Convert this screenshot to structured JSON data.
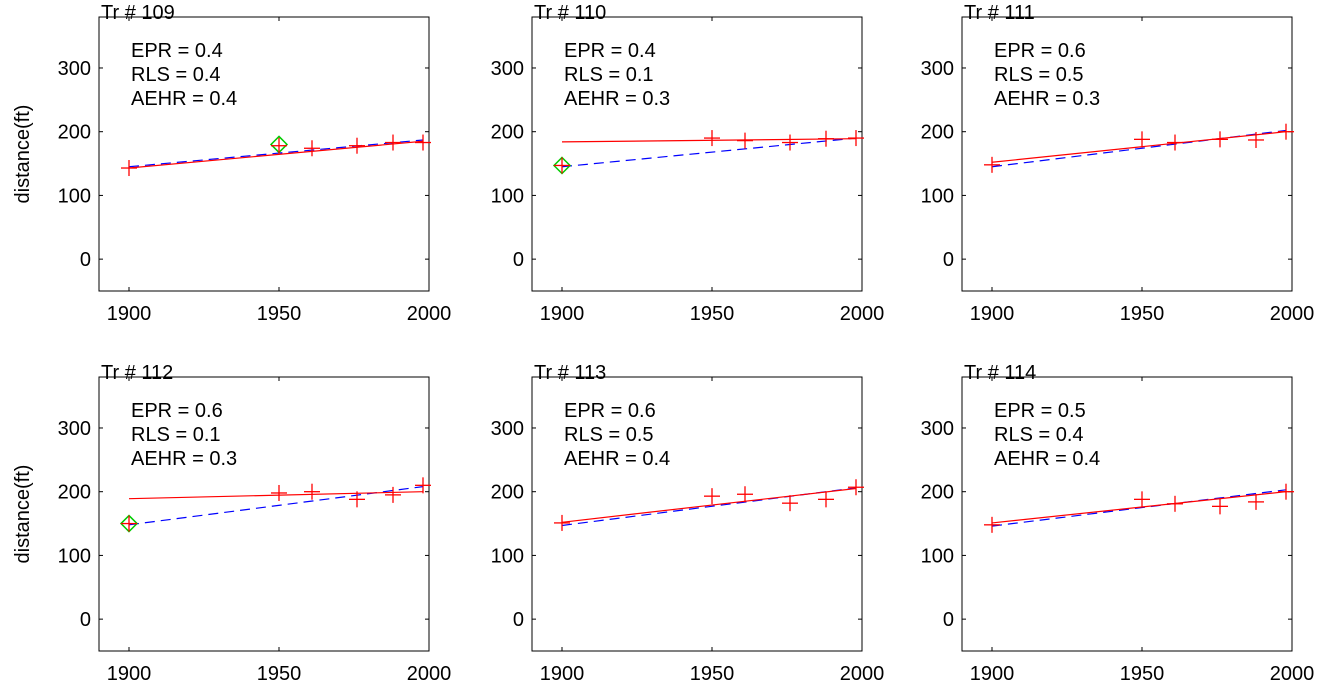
{
  "chart_data": [
    {
      "type": "scatter",
      "title": "Tr # 109",
      "annotations": [
        "EPR = 0.4",
        "RLS = 0.4",
        "AEHR = 0.4"
      ],
      "ylabel": "distance(ft)",
      "xlim": [
        1890,
        2000
      ],
      "ylim": [
        -50,
        380
      ],
      "xticks": [
        1900,
        1950,
        2000
      ],
      "yticks": [
        0,
        100,
        200,
        300
      ],
      "points": {
        "x": [
          1900,
          1950,
          1961,
          1976,
          1988,
          1998
        ],
        "y": [
          143,
          178,
          174,
          178,
          183,
          183
        ]
      },
      "highlight": {
        "x": 1950,
        "y": 180
      },
      "fit_red": {
        "x": [
          1900,
          1998
        ],
        "y": [
          143,
          185
        ]
      },
      "fit_blue": {
        "x": [
          1900,
          1998
        ],
        "y": [
          145,
          187
        ]
      }
    },
    {
      "type": "scatter",
      "title": "Tr # 110",
      "annotations": [
        "EPR = 0.4",
        "RLS = 0.1",
        "AEHR = 0.3"
      ],
      "ylabel": "",
      "xlim": [
        1890,
        2000
      ],
      "ylim": [
        -50,
        380
      ],
      "xticks": [
        1900,
        1950,
        2000
      ],
      "yticks": [
        0,
        100,
        200,
        300
      ],
      "points": {
        "x": [
          1900,
          1950,
          1961,
          1976,
          1988,
          1998
        ],
        "y": [
          147,
          190,
          186,
          183,
          189,
          190
        ]
      },
      "highlight": {
        "x": 1900,
        "y": 147
      },
      "fit_red": {
        "x": [
          1900,
          1998
        ],
        "y": [
          184,
          189
        ]
      },
      "fit_blue": {
        "x": [
          1900,
          1998
        ],
        "y": [
          145,
          190
        ]
      }
    },
    {
      "type": "scatter",
      "title": "Tr # 111",
      "annotations": [
        "EPR = 0.6",
        "RLS = 0.5",
        "AEHR = 0.3"
      ],
      "ylabel": "",
      "xlim": [
        1890,
        2000
      ],
      "ylim": [
        -50,
        380
      ],
      "xticks": [
        1900,
        1950,
        2000
      ],
      "yticks": [
        0,
        100,
        200,
        300
      ],
      "points": {
        "x": [
          1900,
          1950,
          1961,
          1976,
          1988,
          1998
        ],
        "y": [
          148,
          188,
          183,
          188,
          187,
          200
        ]
      },
      "highlight": null,
      "fit_red": {
        "x": [
          1900,
          1998
        ],
        "y": [
          152,
          200
        ]
      },
      "fit_blue": {
        "x": [
          1900,
          1998
        ],
        "y": [
          145,
          202
        ]
      }
    },
    {
      "type": "scatter",
      "title": "Tr # 112",
      "annotations": [
        "EPR = 0.6",
        "RLS = 0.1",
        "AEHR = 0.3"
      ],
      "ylabel": "distance(ft)",
      "xlim": [
        1890,
        2000
      ],
      "ylim": [
        -50,
        380
      ],
      "xticks": [
        1900,
        1950,
        2000
      ],
      "yticks": [
        0,
        100,
        200,
        300
      ],
      "points": {
        "x": [
          1900,
          1950,
          1961,
          1976,
          1988,
          1998
        ],
        "y": [
          150,
          198,
          200,
          188,
          195,
          210
        ]
      },
      "highlight": {
        "x": 1900,
        "y": 150
      },
      "fit_red": {
        "x": [
          1900,
          1998
        ],
        "y": [
          189,
          200
        ]
      },
      "fit_blue": {
        "x": [
          1900,
          1998
        ],
        "y": [
          148,
          208
        ]
      }
    },
    {
      "type": "scatter",
      "title": "Tr # 113",
      "annotations": [
        "EPR = 0.6",
        "RLS = 0.5",
        "AEHR = 0.4"
      ],
      "ylabel": "",
      "xlim": [
        1890,
        2000
      ],
      "ylim": [
        -50,
        380
      ],
      "xticks": [
        1900,
        1950,
        2000
      ],
      "yticks": [
        0,
        100,
        200,
        300
      ],
      "points": {
        "x": [
          1900,
          1950,
          1961,
          1976,
          1988,
          1998
        ],
        "y": [
          151,
          193,
          196,
          182,
          188,
          207
        ]
      },
      "highlight": null,
      "fit_red": {
        "x": [
          1900,
          1998
        ],
        "y": [
          152,
          205
        ]
      },
      "fit_blue": {
        "x": [
          1900,
          1998
        ],
        "y": [
          147,
          206
        ]
      }
    },
    {
      "type": "scatter",
      "title": "Tr # 114",
      "annotations": [
        "EPR = 0.5",
        "RLS = 0.4",
        "AEHR = 0.4"
      ],
      "ylabel": "",
      "xlim": [
        1890,
        2000
      ],
      "ylim": [
        -50,
        380
      ],
      "xticks": [
        1900,
        1950,
        2000
      ],
      "yticks": [
        0,
        100,
        200,
        300
      ],
      "points": {
        "x": [
          1900,
          1950,
          1961,
          1976,
          1988,
          1998
        ],
        "y": [
          148,
          188,
          181,
          177,
          184,
          200
        ]
      },
      "highlight": null,
      "fit_red": {
        "x": [
          1900,
          1998
        ],
        "y": [
          151,
          200
        ]
      },
      "fit_blue": {
        "x": [
          1900,
          1998
        ],
        "y": [
          146,
          203
        ]
      }
    }
  ],
  "colors": {
    "points": "#ff0000",
    "fit_red": "#ff0000",
    "fit_blue": "#0000ff",
    "highlight": "#00cc00",
    "axes": "#000000"
  }
}
